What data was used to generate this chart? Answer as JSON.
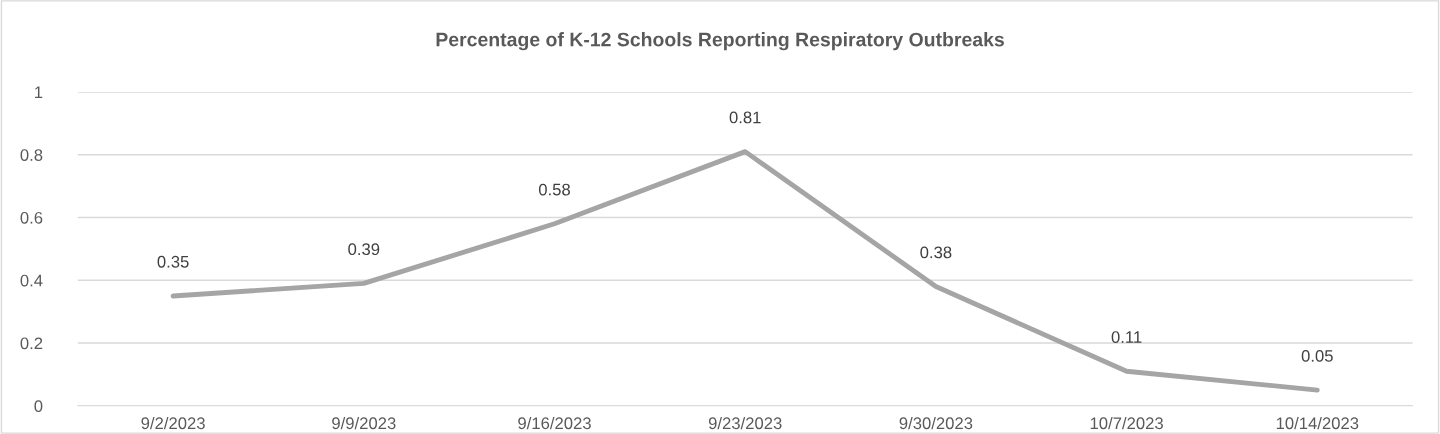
{
  "chart_data": {
    "type": "line",
    "title": "Percentage of K-12 Schools Reporting Respiratory Outbreaks",
    "categories": [
      "9/2/2023",
      "9/9/2023",
      "9/16/2023",
      "9/23/2023",
      "9/30/2023",
      "10/7/2023",
      "10/14/2023"
    ],
    "series": [
      {
        "color": "#a5a5a5",
        "values": [
          0.35,
          0.39,
          0.58,
          0.81,
          0.38,
          0.11,
          0.05
        ]
      }
    ],
    "ylim": [
      0,
      1
    ],
    "yticks": [
      0,
      0.2,
      0.4,
      0.6,
      0.8,
      1
    ],
    "grid": "y",
    "data_labels": true,
    "marker": "none",
    "line_style": "solid",
    "legend": false
  }
}
